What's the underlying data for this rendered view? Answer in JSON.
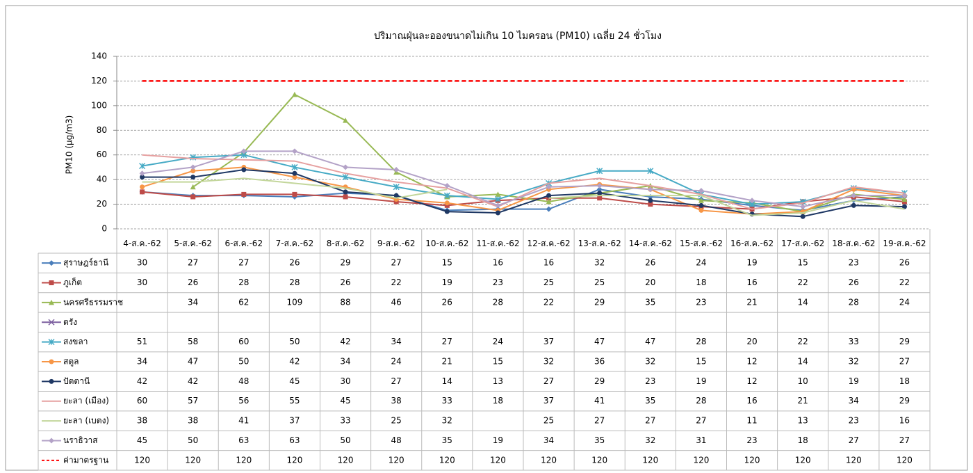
{
  "chart_data": {
    "type": "line",
    "title": "ปริมาณฝุ่นละอองขนาดไม่เกิน 10 ไมครอน (PM10) เฉลี่ย 24 ชั่วโมง",
    "y_label": "PM10 (µg/m3)",
    "categories": [
      "4-ส.ค.-62",
      "5-ส.ค.-62",
      "6-ส.ค.-62",
      "7-ส.ค.-62",
      "8-ส.ค.-62",
      "9-ส.ค.-62",
      "10-ส.ค.-62",
      "11-ส.ค.-62",
      "12-ส.ค.-62",
      "13-ส.ค.-62",
      "14-ส.ค.-62",
      "15-ส.ค.-62",
      "16-ส.ค.-62",
      "17-ส.ค.-62",
      "18-ส.ค.-62",
      "19-ส.ค.-62"
    ],
    "ylim": [
      0,
      140
    ],
    "yticks": [
      0,
      20,
      40,
      60,
      80,
      100,
      120,
      140
    ],
    "grid": true,
    "series": [
      {
        "name": "สุราษฎร์ธานี",
        "color": "#4a7ebb",
        "marker": "diamond",
        "values": [
          30,
          27,
          27,
          26,
          29,
          27,
          15,
          16,
          16,
          32,
          26,
          24,
          19,
          15,
          23,
          26
        ]
      },
      {
        "name": "ภูเก็ต",
        "color": "#be4b48",
        "marker": "square",
        "values": [
          30,
          26,
          28,
          28,
          26,
          22,
          19,
          23,
          25,
          25,
          20,
          18,
          16,
          22,
          26,
          22
        ]
      },
      {
        "name": "นครศรีธรรมราช",
        "color": "#98b954",
        "marker": "triangle",
        "values": [
          null,
          34,
          62,
          109,
          88,
          46,
          26,
          28,
          22,
          29,
          35,
          23,
          21,
          14,
          28,
          24
        ]
      },
      {
        "name": "ตรัง",
        "color": "#7d60a0",
        "marker": "x",
        "values": [
          null,
          null,
          null,
          null,
          null,
          null,
          null,
          null,
          null,
          null,
          null,
          null,
          null,
          null,
          null,
          null
        ]
      },
      {
        "name": "สงขลา",
        "color": "#46aac5",
        "marker": "star",
        "values": [
          51,
          58,
          60,
          50,
          42,
          34,
          27,
          24,
          37,
          47,
          47,
          28,
          20,
          22,
          33,
          29
        ]
      },
      {
        "name": "สตูล",
        "color": "#f79646",
        "marker": "circle",
        "values": [
          34,
          47,
          50,
          42,
          34,
          24,
          21,
          15,
          32,
          36,
          32,
          15,
          12,
          14,
          32,
          27
        ]
      },
      {
        "name": "ปัตตานี",
        "color": "#1f3864",
        "marker": "circle",
        "values": [
          42,
          42,
          48,
          45,
          30,
          27,
          14,
          13,
          27,
          29,
          23,
          19,
          12,
          10,
          19,
          18
        ]
      },
      {
        "name": "ยะลา (เมือง)",
        "color": "#e6a0a0",
        "marker": "none",
        "values": [
          60,
          57,
          56,
          55,
          45,
          38,
          33,
          18,
          37,
          41,
          35,
          28,
          16,
          21,
          34,
          29
        ]
      },
      {
        "name": "ยะลา (เบตง)",
        "color": "#c3d69b",
        "marker": "none",
        "values": [
          38,
          38,
          41,
          37,
          33,
          25,
          32,
          null,
          25,
          27,
          27,
          27,
          11,
          13,
          23,
          16
        ]
      },
      {
        "name": "นราธิวาส",
        "color": "#b3a2c7",
        "marker": "diamond",
        "values": [
          45,
          50,
          63,
          63,
          50,
          48,
          35,
          19,
          34,
          35,
          32,
          31,
          23,
          18,
          27,
          27
        ]
      },
      {
        "name": "ค่ามาตรฐาน",
        "color": "#ff0000",
        "marker": "none",
        "dashed": true,
        "values": [
          120,
          120,
          120,
          120,
          120,
          120,
          120,
          120,
          120,
          120,
          120,
          120,
          120,
          120,
          120,
          120
        ]
      }
    ]
  }
}
